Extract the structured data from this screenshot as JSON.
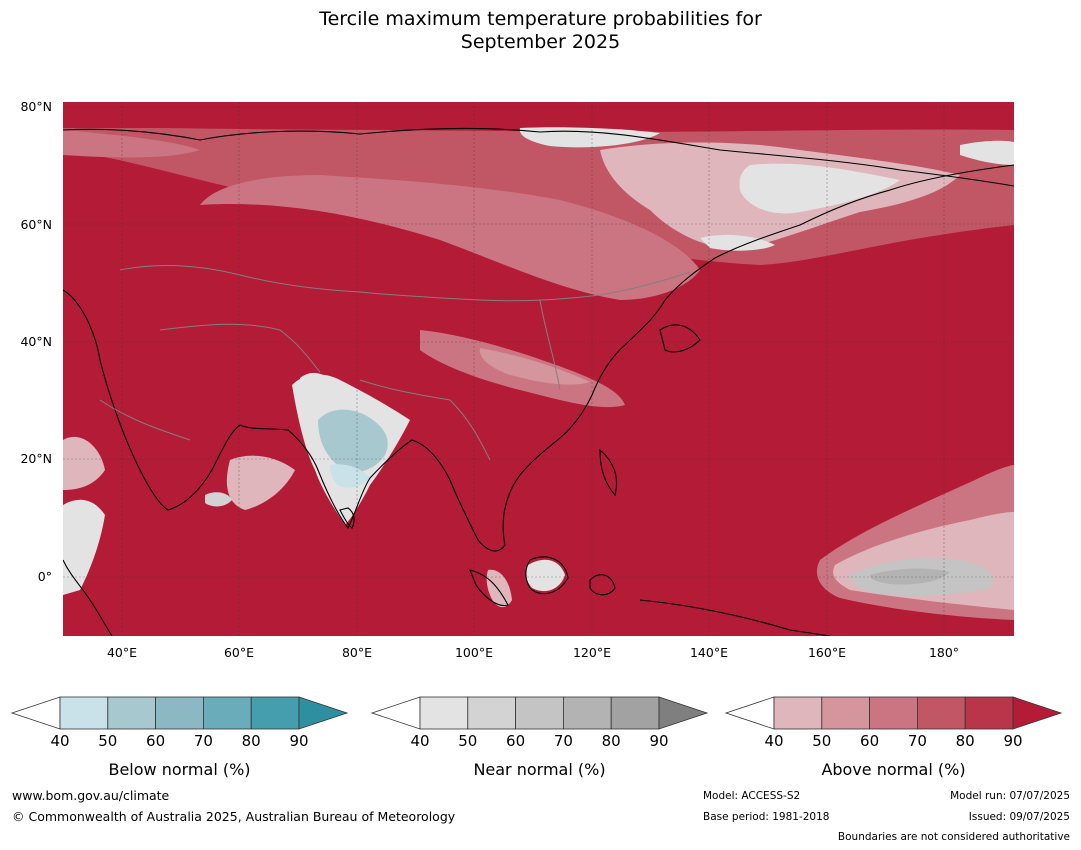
{
  "title": "Tercile maximum temperature probabilities for\nSeptember 2025",
  "map": {
    "lat_labels": [
      "80°N",
      "60°N",
      "40°N",
      "20°N",
      "0°"
    ],
    "lon_labels": [
      "40°E",
      "60°E",
      "80°E",
      "100°E",
      "120°E",
      "140°E",
      "160°E",
      "180°"
    ],
    "lat_range": [
      -10,
      82
    ],
    "lon_range": [
      30,
      192
    ],
    "dominant_category": "Above normal (90%+)"
  },
  "colorbars": [
    {
      "label": "Below normal (%)",
      "ticks": [
        "40",
        "50",
        "60",
        "70",
        "80",
        "90"
      ],
      "colors": [
        "#ffffff",
        "#c9e1e8",
        "#a6c8ce",
        "#8bb8c2",
        "#6aacba",
        "#459eae",
        "#2e8fa0"
      ]
    },
    {
      "label": "Near normal (%)",
      "ticks": [
        "40",
        "50",
        "60",
        "70",
        "80",
        "90"
      ],
      "colors": [
        "#ffffff",
        "#e3e3e3",
        "#d3d3d3",
        "#c4c4c4",
        "#b3b3b3",
        "#a2a2a2",
        "#7f7f7f"
      ]
    },
    {
      "label": "Above normal (%)",
      "ticks": [
        "40",
        "50",
        "60",
        "70",
        "80",
        "90"
      ],
      "colors": [
        "#ffffff",
        "#deb6bc",
        "#d4959d",
        "#ca7581",
        "#c15664",
        "#b8354a",
        "#b31b37"
      ]
    }
  ],
  "footer": {
    "website": "www.bom.gov.au/climate",
    "copyright": "© Commonwealth of Australia 2025, Australian Bureau of Meteorology",
    "model": "Model: ACCESS-S2",
    "base_period": "Base period: 1981-2018",
    "model_run": "Model run: 07/07/2025",
    "issued": "Issued: 09/07/2025",
    "disclaimer": "Boundaries are not considered authoritative"
  }
}
